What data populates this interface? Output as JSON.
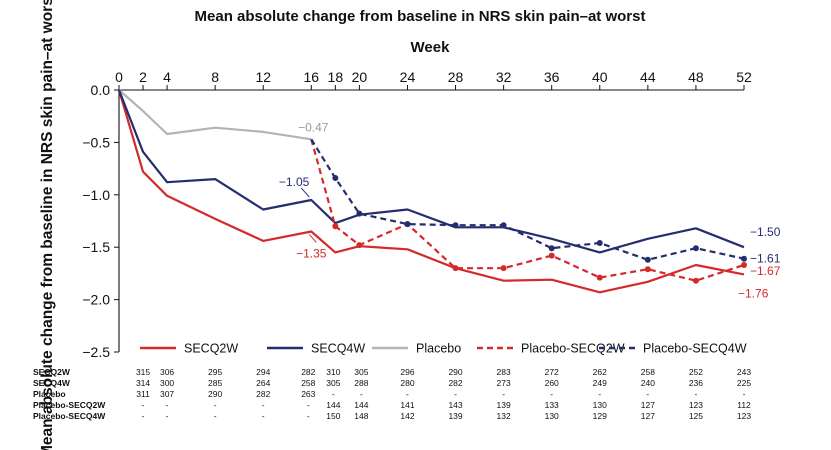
{
  "chart_data": {
    "type": "line",
    "title": "Mean absolute change from baseline in NRS skin pain–at worst",
    "xlabel": "Week",
    "ylabel": "Mean absolute change from baseline in NRS skin pain–at worst",
    "x_ticks": [
      0,
      2,
      4,
      8,
      12,
      16,
      18,
      20,
      24,
      28,
      32,
      36,
      40,
      44,
      48,
      52
    ],
    "xlim": [
      0,
      52
    ],
    "ylim": [
      -2.5,
      0.0
    ],
    "y_ticks": [
      0.0,
      -0.5,
      -1.0,
      -1.5,
      -2.0,
      -2.5
    ],
    "y_tick_labels": [
      "0.0",
      "−0.5",
      "−1.0",
      "−1.5",
      "−2.0",
      "−2.5"
    ],
    "grid": false,
    "legend_position": "bottom",
    "series": [
      {
        "name": "SECQ2W",
        "color": "#d42a2a",
        "style": "solid",
        "marker": false,
        "points": [
          [
            0,
            0.0
          ],
          [
            2,
            -0.78
          ],
          [
            4,
            -1.01
          ],
          [
            8,
            -1.23
          ],
          [
            12,
            -1.44
          ],
          [
            16,
            -1.35
          ],
          [
            18,
            -1.55
          ],
          [
            20,
            -1.49
          ],
          [
            24,
            -1.52
          ],
          [
            28,
            -1.7
          ],
          [
            32,
            -1.82
          ],
          [
            36,
            -1.81
          ],
          [
            40,
            -1.93
          ],
          [
            44,
            -1.83
          ],
          [
            48,
            -1.67
          ],
          [
            52,
            -1.76
          ]
        ]
      },
      {
        "name": "SECQ4W",
        "color": "#242e6e",
        "style": "solid",
        "marker": false,
        "points": [
          [
            0,
            0.0
          ],
          [
            2,
            -0.59
          ],
          [
            4,
            -0.88
          ],
          [
            8,
            -0.85
          ],
          [
            12,
            -1.14
          ],
          [
            16,
            -1.05
          ],
          [
            18,
            -1.27
          ],
          [
            20,
            -1.19
          ],
          [
            24,
            -1.14
          ],
          [
            28,
            -1.31
          ],
          [
            32,
            -1.31
          ],
          [
            36,
            -1.42
          ],
          [
            40,
            -1.55
          ],
          [
            44,
            -1.42
          ],
          [
            48,
            -1.32
          ],
          [
            52,
            -1.5
          ]
        ]
      },
      {
        "name": "Placebo",
        "color": "#b4b4b4",
        "style": "solid",
        "marker": false,
        "points": [
          [
            0,
            0.0
          ],
          [
            2,
            -0.2
          ],
          [
            4,
            -0.42
          ],
          [
            8,
            -0.36
          ],
          [
            12,
            -0.4
          ],
          [
            16,
            -0.47
          ]
        ]
      },
      {
        "name": "Placebo-SECQ2W",
        "color": "#d42a2a",
        "style": "dashed",
        "marker": true,
        "points": [
          [
            16,
            -0.47
          ],
          [
            18,
            -1.3
          ],
          [
            20,
            -1.48
          ],
          [
            24,
            -1.28
          ],
          [
            28,
            -1.7
          ],
          [
            32,
            -1.7
          ],
          [
            36,
            -1.58
          ],
          [
            40,
            -1.79
          ],
          [
            44,
            -1.71
          ],
          [
            48,
            -1.82
          ],
          [
            52,
            -1.67
          ]
        ]
      },
      {
        "name": "Placebo-SECQ4W",
        "color": "#242e6e",
        "style": "dashed",
        "marker": true,
        "points": [
          [
            16,
            -0.47
          ],
          [
            18,
            -0.84
          ],
          [
            20,
            -1.18
          ],
          [
            24,
            -1.28
          ],
          [
            28,
            -1.29
          ],
          [
            32,
            -1.29
          ],
          [
            36,
            -1.51
          ],
          [
            40,
            -1.46
          ],
          [
            44,
            -1.62
          ],
          [
            48,
            -1.51
          ],
          [
            52,
            -1.61
          ]
        ]
      }
    ],
    "annotations": [
      {
        "text": "−0.47",
        "x": 16,
        "y": -0.47,
        "color": "#9a9a9a"
      },
      {
        "text": "−1.05",
        "x": 16,
        "y": -1.05,
        "color": "#242e6e"
      },
      {
        "text": "−1.35",
        "x": 16,
        "y": -1.35,
        "color": "#d42a2a"
      },
      {
        "text": "−1.50",
        "x": 52,
        "y": -1.5,
        "color": "#242e6e"
      },
      {
        "text": "−1.61",
        "x": 52,
        "y": -1.61,
        "color": "#242e6e"
      },
      {
        "text": "−1.67",
        "x": 52,
        "y": -1.67,
        "color": "#d42a2a"
      },
      {
        "text": "−1.76",
        "x": 52,
        "y": -1.76,
        "color": "#d42a2a"
      }
    ],
    "n_at_risk": {
      "weeks": [
        2,
        4,
        8,
        12,
        16,
        18,
        20,
        24,
        28,
        32,
        36,
        40,
        44,
        48,
        52
      ],
      "rows": [
        {
          "label": "SECQ2W",
          "values": [
            "315",
            "306",
            "295",
            "294",
            "282",
            "310",
            "305",
            "296",
            "290",
            "283",
            "272",
            "262",
            "258",
            "252",
            "243"
          ]
        },
        {
          "label": "SECQ4W",
          "values": [
            "314",
            "300",
            "285",
            "264",
            "258",
            "305",
            "288",
            "280",
            "282",
            "273",
            "260",
            "249",
            "240",
            "236",
            "225"
          ]
        },
        {
          "label": "Placebo",
          "values": [
            "311",
            "307",
            "290",
            "282",
            "263",
            "-",
            "-",
            "-",
            "-",
            "-",
            "-",
            "-",
            "-",
            "-",
            "-"
          ]
        },
        {
          "label": "Placebo-SECQ2W",
          "values": [
            "-",
            "-",
            "-",
            "-",
            "-",
            "144",
            "144",
            "141",
            "143",
            "139",
            "133",
            "130",
            "127",
            "123",
            "112"
          ]
        },
        {
          "label": "Placebo-SECQ4W",
          "values": [
            "-",
            "-",
            "-",
            "-",
            "-",
            "150",
            "148",
            "142",
            "139",
            "132",
            "130",
            "129",
            "127",
            "125",
            "123"
          ]
        }
      ]
    }
  }
}
